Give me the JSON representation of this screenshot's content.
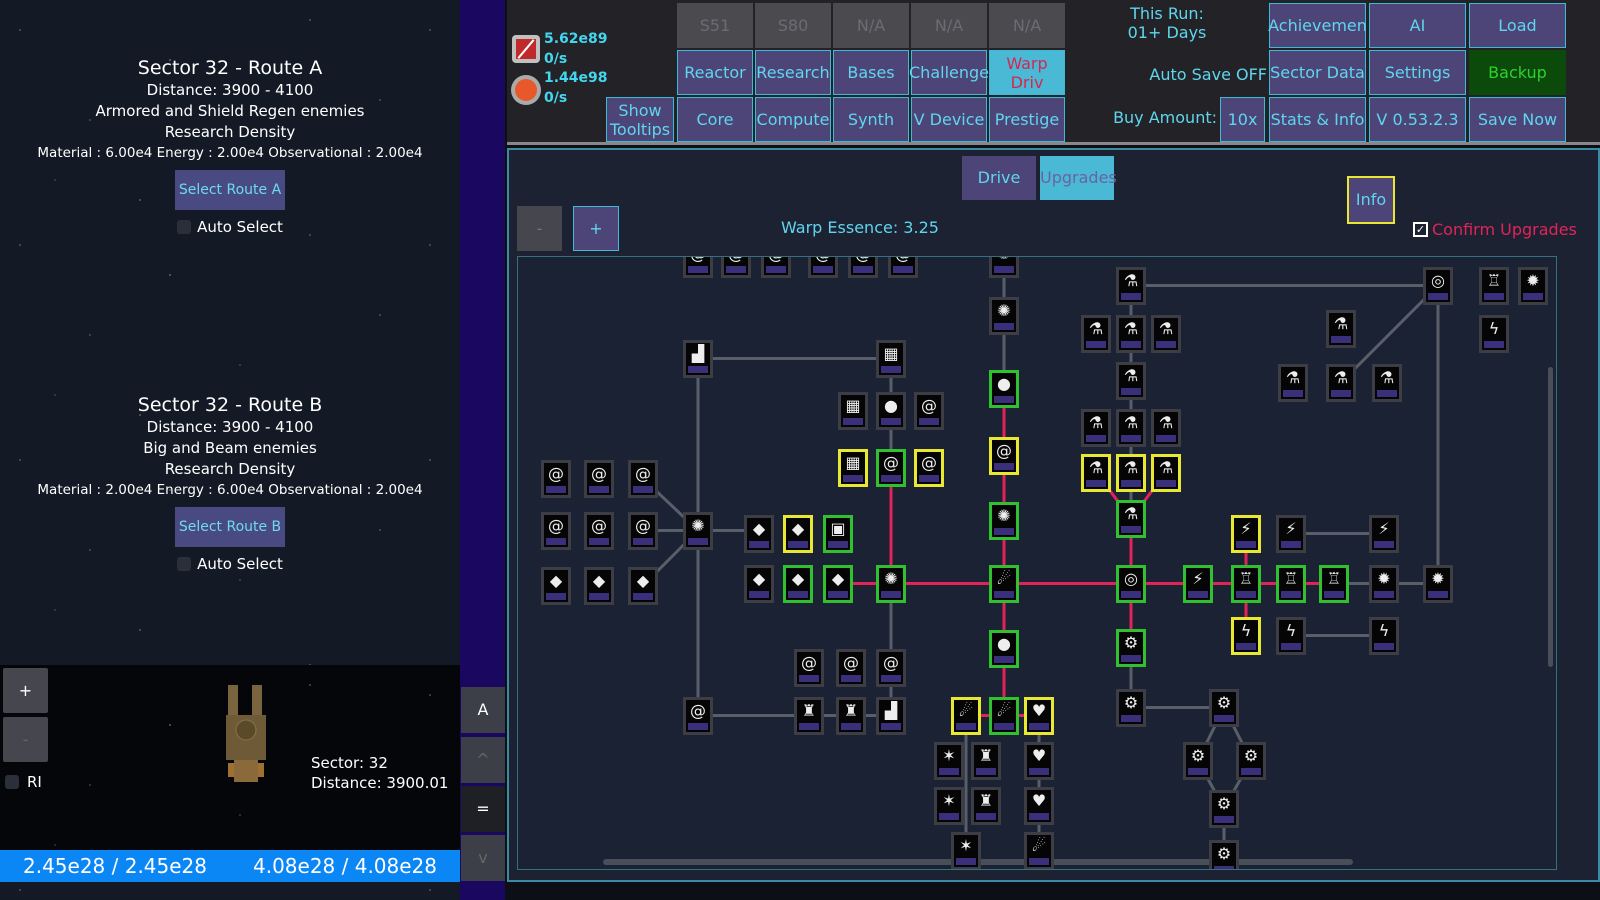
{
  "left": {
    "routes": [
      {
        "title": "Sector 32 - Route A",
        "distance": "Distance: 3900 - 4100",
        "enemies": "Armored and Shield Regen enemies",
        "density_title": "Research Density",
        "density": "Material : 6.00e4 Energy : 2.00e4 Observational : 2.00e4",
        "select_label": "Select Route A",
        "auto_label": "Auto Select"
      },
      {
        "title": "Sector 32 - Route B",
        "distance": "Distance: 3900 - 4100",
        "enemies": "Big and Beam enemies",
        "density_title": "Research Density",
        "density": "Material : 2.00e4 Energy : 6.00e4 Observational : 2.00e4",
        "select_label": "Select Route B",
        "auto_label": "Auto Select"
      }
    ],
    "ship": {
      "zoom_in": "+",
      "zoom_out": "-",
      "ri_label": "RI",
      "sector": "Sector: 32",
      "distance": "Distance: 3900.01"
    },
    "bars": {
      "hull": "2.45e28 / 2.45e28",
      "shield": "4.08e28 / 4.08e28"
    },
    "side_buttons": [
      "A",
      "^",
      "=",
      "v"
    ]
  },
  "resources": {
    "r1_value": "5.62e89",
    "r1_rate": "0/s",
    "r2_value": "1.44e98",
    "r2_rate": "0/s"
  },
  "nav": {
    "row1": [
      "S51",
      "S80",
      "N/A",
      "N/A",
      "N/A"
    ],
    "row2": [
      "Reactor",
      "Research",
      "Bases",
      "Challenge",
      "Warp Driv"
    ],
    "row3": [
      "Core",
      "Compute",
      "Synth",
      "V Device",
      "Prestige"
    ],
    "show_tooltips": "Show Tooltips",
    "this_run": "This Run:",
    "days": "01+ Days",
    "auto_save": "Auto Save OFF",
    "buy_amount": "Buy Amount:",
    "buy_value": "10x",
    "right": [
      "Achievemen",
      "AI",
      "Load",
      "Sector Data",
      "Settings",
      "Backup",
      "Stats & Info",
      "V 0.53.2.3",
      "Save Now"
    ]
  },
  "warp": {
    "tabs": [
      "Drive",
      "Upgrades"
    ],
    "active_tab": "Upgrades",
    "minus": "-",
    "plus": "+",
    "essence": "Warp Essence: 3.25",
    "info": "Info",
    "confirm": "Confirm Upgrades",
    "confirm_checked": true
  },
  "colors": {
    "accent": "#5fd6ee",
    "active_path": "#e0245a",
    "owned": "#30c030",
    "available": "#e8e832"
  }
}
